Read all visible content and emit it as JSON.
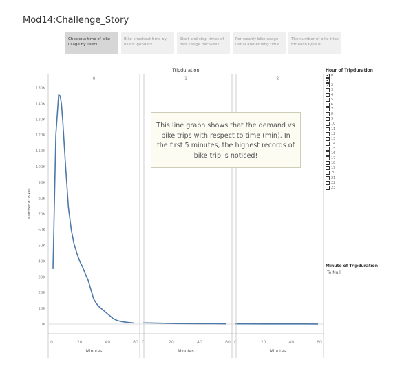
{
  "story_title": "Mod14:Challenge_Story",
  "nav_tabs": [
    {
      "label": "Checkout time of bike usage by users",
      "active": true
    },
    {
      "label": "Bike checkout time by users' genders",
      "active": false
    },
    {
      "label": "Start and stop times of bike usage per week",
      "active": false
    },
    {
      "label": "Per weekly bike usage initial and ending time",
      "active": false
    },
    {
      "label": "The number of bike trips for each type of ...",
      "active": false
    }
  ],
  "annotation": "This line graph shows that the demand vs bike trips with respect to time (min). In the first 5 minutes, the highest records of bike trip is noticed!",
  "legend": {
    "title": "Hour of Tripduration",
    "items": [
      {
        "label": "0",
        "checked": true
      },
      {
        "label": "1",
        "checked": true
      },
      {
        "label": "2",
        "checked": true
      },
      {
        "label": "3",
        "checked": false
      },
      {
        "label": "4",
        "checked": false
      },
      {
        "label": "5",
        "checked": false
      },
      {
        "label": "6",
        "checked": false
      },
      {
        "label": "7",
        "checked": false
      },
      {
        "label": "8",
        "checked": false
      },
      {
        "label": "9",
        "checked": false
      },
      {
        "label": "10",
        "checked": false
      },
      {
        "label": "11",
        "checked": false
      },
      {
        "label": "12",
        "checked": false
      },
      {
        "label": "13",
        "checked": false
      },
      {
        "label": "14",
        "checked": false
      },
      {
        "label": "15",
        "checked": false
      },
      {
        "label": "16",
        "checked": false
      },
      {
        "label": "17",
        "checked": false
      },
      {
        "label": "18",
        "checked": false
      },
      {
        "label": "19",
        "checked": false
      },
      {
        "label": "20",
        "checked": false
      },
      {
        "label": "21",
        "checked": false
      },
      {
        "label": "22",
        "checked": false
      },
      {
        "label": "23",
        "checked": false
      }
    ]
  },
  "minute_filter": {
    "title": "Minute of Tripduration",
    "value": "To Null"
  },
  "chart_data": {
    "type": "line",
    "title": "Tripduration",
    "ylabel": "Number of Bikes",
    "xlabel": "Minutes",
    "ylim": [
      0,
      150000
    ],
    "yticks": [
      0,
      10000,
      20000,
      30000,
      40000,
      50000,
      60000,
      70000,
      80000,
      90000,
      100000,
      110000,
      120000,
      130000,
      140000,
      150000
    ],
    "ytick_labels": [
      "0K",
      "10K",
      "20K",
      "30K",
      "40K",
      "50K",
      "60K",
      "70K",
      "80K",
      "90K",
      "100K",
      "110K",
      "120K",
      "130K",
      "140K",
      "150K"
    ],
    "xlim": [
      0,
      60
    ],
    "xticks": [
      0,
      20,
      40,
      60
    ],
    "color": "#4e79a7",
    "panels": [
      {
        "header": "0",
        "x": [
          1,
          3,
          5,
          6,
          7,
          8,
          10,
          12,
          14,
          16,
          18,
          20,
          22,
          24,
          26,
          28,
          30,
          32,
          34,
          36,
          38,
          40,
          42,
          44,
          46,
          48,
          50,
          55,
          59
        ],
        "y": [
          35000,
          120000,
          145500,
          145000,
          140000,
          128000,
          100000,
          74000,
          60000,
          51000,
          45000,
          40000,
          36500,
          32000,
          28000,
          22000,
          16000,
          13000,
          11000,
          9500,
          8000,
          6500,
          5000,
          3500,
          2600,
          2000,
          1600,
          1000,
          700
        ]
      },
      {
        "header": "1",
        "x": [
          0,
          10,
          20,
          30,
          40,
          50,
          59
        ],
        "y": [
          800,
          600,
          400,
          300,
          250,
          200,
          150
        ]
      },
      {
        "header": "2",
        "x": [
          0,
          10,
          20,
          30,
          40,
          50,
          59
        ],
        "y": [
          150,
          120,
          100,
          90,
          80,
          70,
          60
        ]
      }
    ]
  }
}
